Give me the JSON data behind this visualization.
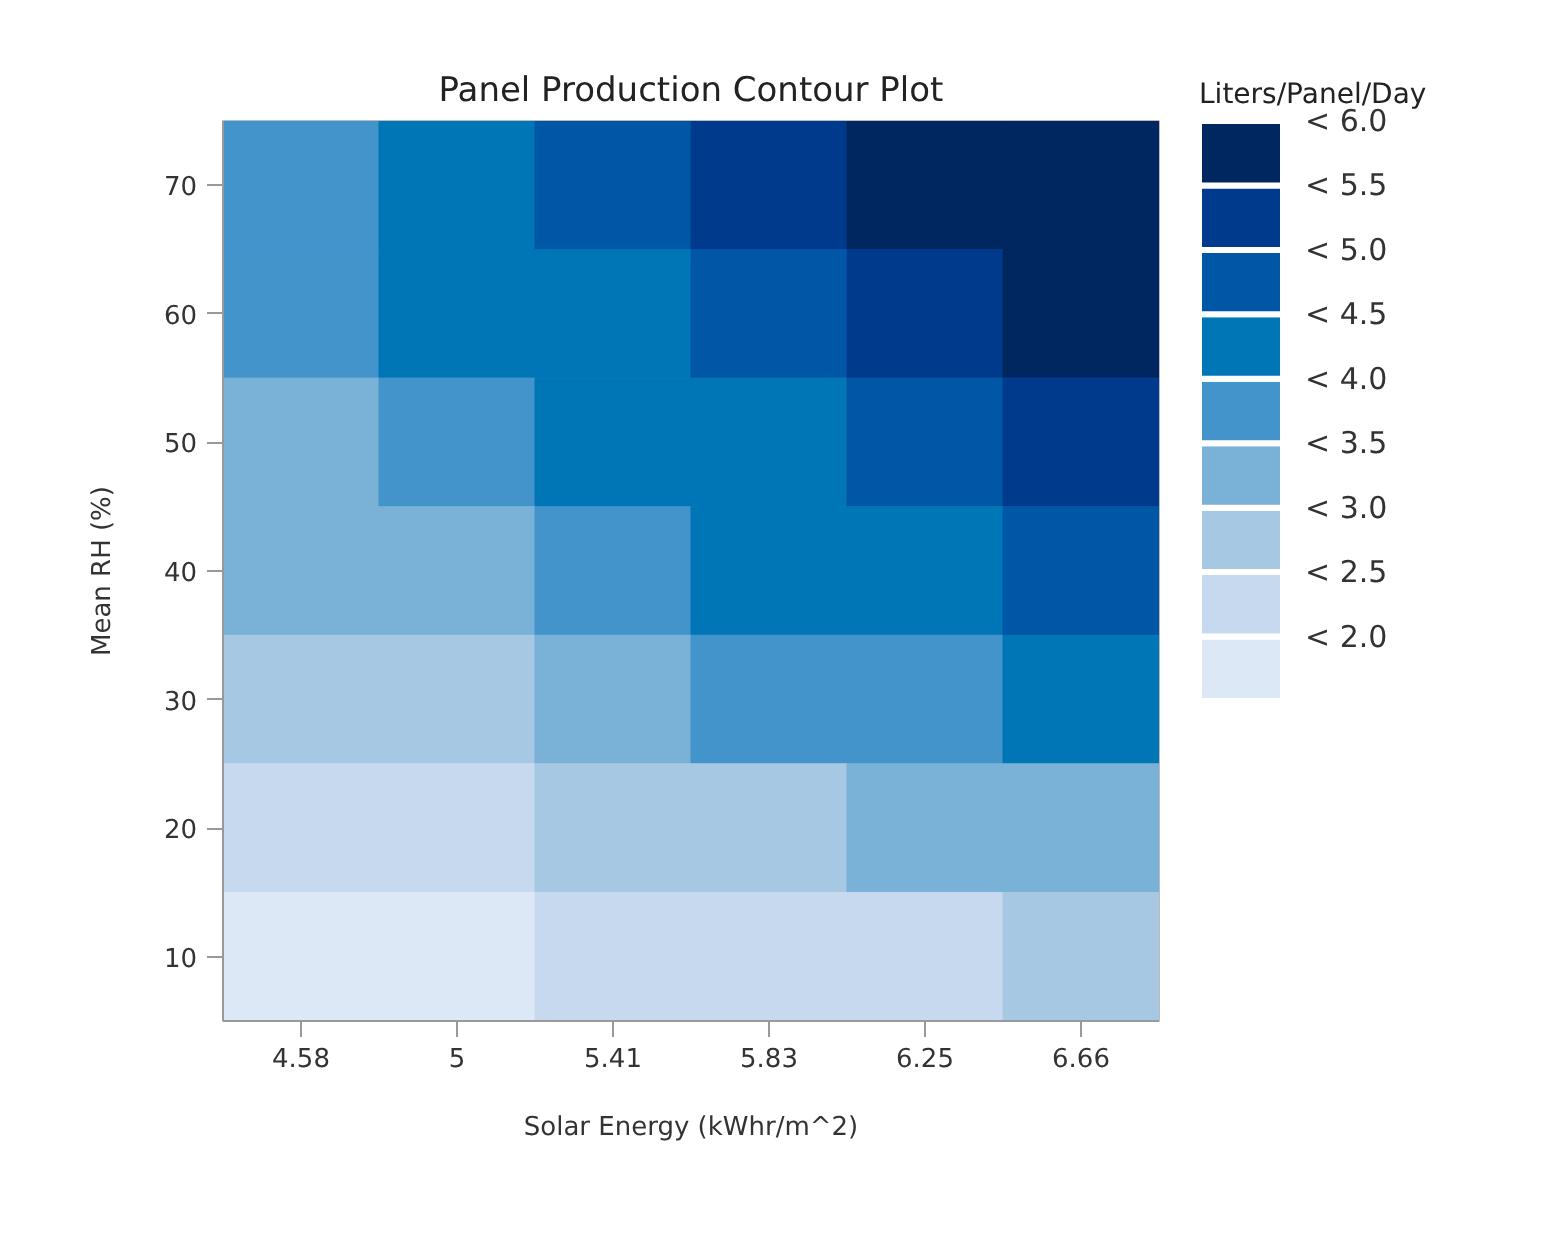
{
  "chart_data": {
    "type": "heatmap",
    "title": "Panel Production Contour Plot",
    "xlabel": "Solar Energy (kWhr/m^2)",
    "ylabel": "Mean RH (%)",
    "clabel": "Liters/Panel/Day",
    "categories": [
      "4.58",
      "5",
      "5.41",
      "5.83",
      "6.25",
      "6.66"
    ],
    "y_categories": [
      "70",
      "60",
      "50",
      "40",
      "30",
      "20",
      "10"
    ],
    "cells": [
      [
        3.75,
        4.25,
        4.75,
        5.25,
        5.75,
        5.75
      ],
      [
        3.75,
        4.25,
        4.25,
        4.75,
        5.25,
        5.75
      ],
      [
        3.25,
        3.75,
        4.25,
        4.25,
        4.75,
        5.25
      ],
      [
        3.25,
        3.25,
        3.75,
        4.25,
        4.25,
        4.75
      ],
      [
        2.75,
        2.75,
        3.25,
        3.75,
        3.75,
        4.25
      ],
      [
        2.25,
        2.25,
        2.75,
        2.75,
        3.25,
        3.25
      ],
      [
        1.75,
        1.75,
        2.25,
        2.25,
        2.25,
        2.75
      ]
    ],
    "clim": [
      1.5,
      6.0
    ],
    "cticks": [
      {
        "value": 2.0,
        "label": "< 2.0"
      },
      {
        "value": 2.5,
        "label": "< 2.5"
      },
      {
        "value": 3.0,
        "label": "< 3.0"
      },
      {
        "value": 3.5,
        "label": "< 3.5"
      },
      {
        "value": 4.0,
        "label": "< 4.0"
      },
      {
        "value": 4.5,
        "label": "< 4.5"
      },
      {
        "value": 5.0,
        "label": "< 5.0"
      },
      {
        "value": 5.5,
        "label": "< 5.5"
      },
      {
        "value": 6.0,
        "label": "< 6.0"
      }
    ],
    "colors": [
      "#dce8f6",
      "#c7d9ef",
      "#a7c8e2",
      "#79b1d7",
      "#4394cb",
      "#0076b6",
      "#0057a6",
      "#003a8c",
      "#00275f"
    ]
  }
}
